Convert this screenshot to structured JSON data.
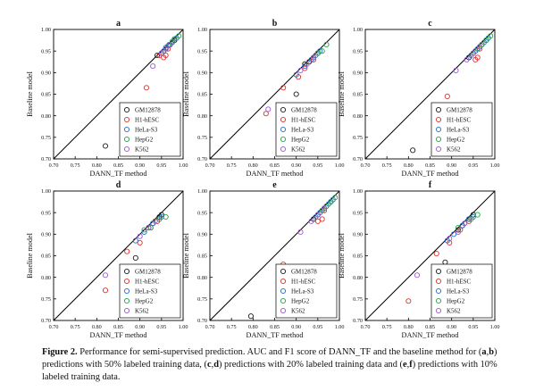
{
  "figure": {
    "legend_labels": [
      "GM12878",
      "H1-hESC",
      "HeLa-S3",
      "HepG2",
      "K562"
    ],
    "series_colors": [
      "#1a1a1a",
      "#e0302a",
      "#1f6fd0",
      "#27a34a",
      "#9b59d0"
    ],
    "x_ticks": [
      "0.70",
      "0.75",
      "0.80",
      "0.85",
      "0.90",
      "0.95",
      "1.00"
    ],
    "y_ticks": [
      "0.70",
      "0.75",
      "0.80",
      "0.85",
      "0.90",
      "0.95",
      "1.00"
    ]
  },
  "chart_data": [
    {
      "type": "scatter",
      "title": "a",
      "xlabel": "DANN_TF method",
      "ylabel": "Baseline model",
      "xlim": [
        0.7,
        1.0
      ],
      "ylim": [
        0.7,
        1.0
      ],
      "diagonal": true,
      "grid": false,
      "legend": "bottom-right",
      "series": [
        {
          "name": "GM12878",
          "points": [
            [
              0.82,
              0.73
            ],
            [
              0.94,
              0.94
            ],
            [
              0.95,
              0.945
            ],
            [
              0.96,
              0.955
            ],
            [
              0.97,
              0.965
            ],
            [
              0.98,
              0.975
            ]
          ]
        },
        {
          "name": "H1-hESC",
          "points": [
            [
              0.915,
              0.865
            ],
            [
              0.945,
              0.94
            ],
            [
              0.955,
              0.935
            ],
            [
              0.96,
              0.94
            ],
            [
              0.965,
              0.955
            ]
          ]
        },
        {
          "name": "HeLa-S3",
          "points": [
            [
              0.955,
              0.95
            ],
            [
              0.96,
              0.958
            ],
            [
              0.968,
              0.965
            ],
            [
              0.975,
              0.97
            ],
            [
              0.985,
              0.98
            ]
          ]
        },
        {
          "name": "HepG2",
          "points": [
            [
              0.965,
              0.962
            ],
            [
              0.975,
              0.972
            ],
            [
              0.98,
              0.978
            ],
            [
              0.99,
              0.985
            ]
          ]
        },
        {
          "name": "K562",
          "points": [
            [
              0.93,
              0.915
            ],
            [
              0.95,
              0.945
            ],
            [
              0.96,
              0.955
            ],
            [
              0.97,
              0.965
            ]
          ]
        }
      ]
    },
    {
      "type": "scatter",
      "title": "b",
      "xlabel": "DANN_TF method",
      "ylabel": "Baseline model",
      "xlim": [
        0.7,
        1.0
      ],
      "ylim": [
        0.7,
        1.0
      ],
      "diagonal": true,
      "grid": false,
      "legend": "bottom-right",
      "series": [
        {
          "name": "GM12878",
          "points": [
            [
              0.9,
              0.85
            ],
            [
              0.92,
              0.92
            ],
            [
              0.93,
              0.925
            ],
            [
              0.94,
              0.935
            ],
            [
              0.95,
              0.945
            ]
          ]
        },
        {
          "name": "H1-hESC",
          "points": [
            [
              0.83,
              0.805
            ],
            [
              0.87,
              0.865
            ],
            [
              0.905,
              0.89
            ],
            [
              0.92,
              0.91
            ],
            [
              0.94,
              0.93
            ]
          ]
        },
        {
          "name": "HeLa-S3",
          "points": [
            [
              0.9,
              0.895
            ],
            [
              0.92,
              0.915
            ],
            [
              0.935,
              0.93
            ],
            [
              0.945,
              0.94
            ],
            [
              0.955,
              0.95
            ]
          ]
        },
        {
          "name": "HepG2",
          "points": [
            [
              0.94,
              0.935
            ],
            [
              0.95,
              0.945
            ],
            [
              0.96,
              0.95
            ],
            [
              0.97,
              0.965
            ]
          ]
        },
        {
          "name": "K562",
          "points": [
            [
              0.835,
              0.815
            ],
            [
              0.91,
              0.905
            ],
            [
              0.925,
              0.92
            ],
            [
              0.94,
              0.935
            ]
          ]
        }
      ]
    },
    {
      "type": "scatter",
      "title": "c",
      "xlabel": "DANN_TF method",
      "ylabel": "Baseline model",
      "xlim": [
        0.7,
        1.0
      ],
      "ylim": [
        0.7,
        1.0
      ],
      "diagonal": true,
      "grid": false,
      "legend": "bottom-right",
      "series": [
        {
          "name": "GM12878",
          "points": [
            [
              0.81,
              0.72
            ],
            [
              0.94,
              0.935
            ],
            [
              0.95,
              0.945
            ],
            [
              0.96,
              0.955
            ],
            [
              0.97,
              0.965
            ],
            [
              0.98,
              0.975
            ]
          ]
        },
        {
          "name": "H1-hESC",
          "points": [
            [
              0.89,
              0.845
            ],
            [
              0.955,
              0.93
            ],
            [
              0.96,
              0.935
            ],
            [
              0.965,
              0.955
            ]
          ]
        },
        {
          "name": "HeLa-S3",
          "points": [
            [
              0.945,
              0.94
            ],
            [
              0.955,
              0.95
            ],
            [
              0.965,
              0.96
            ],
            [
              0.975,
              0.97
            ],
            [
              0.985,
              0.98
            ]
          ]
        },
        {
          "name": "HepG2",
          "points": [
            [
              0.96,
              0.955
            ],
            [
              0.97,
              0.965
            ],
            [
              0.98,
              0.975
            ],
            [
              0.99,
              0.985
            ]
          ]
        },
        {
          "name": "K562",
          "points": [
            [
              0.91,
              0.905
            ],
            [
              0.935,
              0.93
            ],
            [
              0.95,
              0.945
            ],
            [
              0.965,
              0.96
            ]
          ]
        }
      ]
    },
    {
      "type": "scatter",
      "title": "d",
      "xlabel": "DANN_TF method",
      "ylabel": "Baseline model",
      "xlim": [
        0.7,
        1.0
      ],
      "ylim": [
        0.7,
        1.0
      ],
      "diagonal": true,
      "grid": false,
      "legend": "bottom-right",
      "series": [
        {
          "name": "GM12878",
          "points": [
            [
              0.89,
              0.845
            ],
            [
              0.92,
              0.915
            ],
            [
              0.93,
              0.925
            ],
            [
              0.945,
              0.94
            ],
            [
              0.95,
              0.945
            ]
          ]
        },
        {
          "name": "H1-hESC",
          "points": [
            [
              0.82,
              0.77
            ],
            [
              0.87,
              0.86
            ],
            [
              0.9,
              0.88
            ],
            [
              0.925,
              0.915
            ],
            [
              0.94,
              0.93
            ]
          ]
        },
        {
          "name": "HeLa-S3",
          "points": [
            [
              0.89,
              0.885
            ],
            [
              0.91,
              0.905
            ],
            [
              0.93,
              0.925
            ],
            [
              0.945,
              0.935
            ],
            [
              0.95,
              0.94
            ]
          ]
        },
        {
          "name": "HepG2",
          "points": [
            [
              0.91,
              0.91
            ],
            [
              0.925,
              0.915
            ],
            [
              0.945,
              0.935
            ],
            [
              0.96,
              0.94
            ]
          ]
        },
        {
          "name": "K562",
          "points": [
            [
              0.82,
              0.805
            ],
            [
              0.9,
              0.895
            ],
            [
              0.92,
              0.915
            ],
            [
              0.935,
              0.93
            ]
          ]
        }
      ]
    },
    {
      "type": "scatter",
      "title": "e",
      "xlabel": "DANN_TF method",
      "ylabel": "Baseline model",
      "xlim": [
        0.7,
        1.0
      ],
      "ylim": [
        0.7,
        1.0
      ],
      "diagonal": true,
      "grid": false,
      "legend": "bottom-right",
      "series": [
        {
          "name": "GM12878",
          "points": [
            [
              0.795,
              0.71
            ],
            [
              0.94,
              0.935
            ],
            [
              0.95,
              0.945
            ],
            [
              0.96,
              0.955
            ],
            [
              0.97,
              0.965
            ],
            [
              0.98,
              0.975
            ]
          ]
        },
        {
          "name": "H1-hESC",
          "points": [
            [
              0.87,
              0.83
            ],
            [
              0.95,
              0.93
            ],
            [
              0.96,
              0.935
            ],
            [
              0.965,
              0.955
            ]
          ]
        },
        {
          "name": "HeLa-S3",
          "points": [
            [
              0.945,
              0.94
            ],
            [
              0.955,
              0.95
            ],
            [
              0.965,
              0.96
            ],
            [
              0.975,
              0.97
            ],
            [
              0.985,
              0.98
            ]
          ]
        },
        {
          "name": "HepG2",
          "points": [
            [
              0.96,
              0.955
            ],
            [
              0.97,
              0.965
            ],
            [
              0.98,
              0.975
            ],
            [
              0.99,
              0.985
            ]
          ]
        },
        {
          "name": "K562",
          "points": [
            [
              0.91,
              0.905
            ],
            [
              0.935,
              0.93
            ],
            [
              0.95,
              0.945
            ],
            [
              0.965,
              0.96
            ]
          ]
        }
      ]
    },
    {
      "type": "scatter",
      "title": "f",
      "xlabel": "DANN_TF method",
      "ylabel": "Baseline model",
      "xlim": [
        0.7,
        1.0
      ],
      "ylim": [
        0.7,
        1.0
      ],
      "diagonal": true,
      "grid": false,
      "legend": "bottom-right",
      "series": [
        {
          "name": "GM12878",
          "points": [
            [
              0.885,
              0.835
            ],
            [
              0.915,
              0.91
            ],
            [
              0.925,
              0.92
            ],
            [
              0.94,
              0.935
            ],
            [
              0.95,
              0.945
            ]
          ]
        },
        {
          "name": "H1-hESC",
          "points": [
            [
              0.8,
              0.745
            ],
            [
              0.865,
              0.855
            ],
            [
              0.895,
              0.88
            ],
            [
              0.92,
              0.91
            ],
            [
              0.94,
              0.93
            ]
          ]
        },
        {
          "name": "HeLa-S3",
          "points": [
            [
              0.89,
              0.885
            ],
            [
              0.905,
              0.9
            ],
            [
              0.925,
              0.92
            ],
            [
              0.94,
              0.935
            ],
            [
              0.95,
              0.94
            ]
          ]
        },
        {
          "name": "HepG2",
          "points": [
            [
              0.915,
              0.915
            ],
            [
              0.93,
              0.925
            ],
            [
              0.945,
              0.935
            ],
            [
              0.96,
              0.945
            ]
          ]
        },
        {
          "name": "K562",
          "points": [
            [
              0.82,
              0.805
            ],
            [
              0.895,
              0.89
            ],
            [
              0.915,
              0.905
            ],
            [
              0.93,
              0.925
            ]
          ]
        }
      ]
    }
  ],
  "caption": {
    "label": "Figure 2.",
    "segments": [
      {
        "t": " Performance for semi-supervised prediction. AUC and F1 score of DANN_TF and the baseline method for (",
        "b": false
      },
      {
        "t": "a",
        "b": true
      },
      {
        "t": ",",
        "b": false
      },
      {
        "t": "b",
        "b": true
      },
      {
        "t": ") predictions with 50% labeled training data, (",
        "b": false
      },
      {
        "t": "c",
        "b": true
      },
      {
        "t": ",",
        "b": false
      },
      {
        "t": "d",
        "b": true
      },
      {
        "t": ") predictions with 20% labeled training data and (",
        "b": false
      },
      {
        "t": "e",
        "b": true
      },
      {
        "t": ",",
        "b": false
      },
      {
        "t": "f",
        "b": true
      },
      {
        "t": ") predictions with 10% labeled training data.",
        "b": false
      }
    ]
  }
}
